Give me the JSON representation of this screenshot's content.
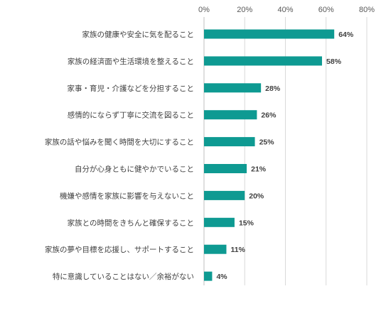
{
  "chart_data": {
    "type": "bar",
    "orientation": "horizontal",
    "categories": [
      "家族の健康や安全に気を配ること",
      "家族の経済面や生活環境を整えること",
      "家事・育児・介護などを分担すること",
      "感情的にならず丁寧に交流を図ること",
      "家族の話や悩みを聞く時間を大切にすること",
      "自分が心身ともに健やかでいること",
      "機嫌や感情を家族に影響を与えないこと",
      "家族との時間をきちんと確保すること",
      "家族の夢や目標を応援し、サポートすること",
      "特に意識していることはない／余裕がない"
    ],
    "values": [
      64,
      58,
      28,
      26,
      25,
      21,
      20,
      15,
      11,
      4
    ],
    "data_labels": [
      "64%",
      "58%",
      "28%",
      "26%",
      "25%",
      "21%",
      "20%",
      "15%",
      "11%",
      "4%"
    ],
    "xlim": [
      0,
      80
    ],
    "xticks": [
      0,
      20,
      40,
      60,
      80
    ],
    "xtick_labels": [
      "0%",
      "20%",
      "40%",
      "60%",
      "80%"
    ],
    "x_axis_position": "top",
    "grid": true,
    "legend": "none",
    "bar_color": "#0e9a92"
  }
}
